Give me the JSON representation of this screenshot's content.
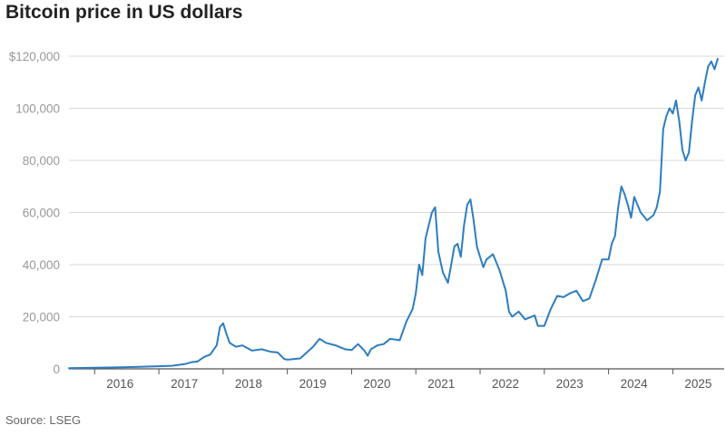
{
  "title": "Bitcoin price in US dollars",
  "source": "Source: LSEG",
  "chart_data": {
    "type": "line",
    "title": "Bitcoin price in US dollars",
    "xlabel": "",
    "ylabel": "",
    "xlim": [
      2015.6,
      2025.8
    ],
    "ylim": [
      0,
      120000
    ],
    "y_ticks": [
      0,
      20000,
      40000,
      60000,
      80000,
      100000,
      120000
    ],
    "y_tick_labels": [
      "0",
      "20,000",
      "40,000",
      "60,000",
      "80,000",
      "100,000",
      "$120,000"
    ],
    "x_ticks": [
      2016,
      2017,
      2018,
      2019,
      2020,
      2021,
      2022,
      2023,
      2024,
      2025
    ],
    "x_tick_labels": [
      "2016",
      "2017",
      "2018",
      "2019",
      "2020",
      "2021",
      "2022",
      "2023",
      "2024",
      "2025"
    ],
    "grid": true,
    "legend": "none",
    "line_color": "#2e7dbf",
    "series": [
      {
        "x": [
          2015.6,
          2016.0,
          2016.5,
          2017.0,
          2017.2,
          2017.4,
          2017.5,
          2017.6,
          2017.7,
          2017.8,
          2017.9,
          2017.95,
          2018.0,
          2018.05,
          2018.1,
          2018.2,
          2018.3,
          2018.45,
          2018.6,
          2018.75,
          2018.85,
          2018.95,
          2019.0,
          2019.2,
          2019.4,
          2019.5,
          2019.6,
          2019.75,
          2019.9,
          2020.0,
          2020.1,
          2020.2,
          2020.25,
          2020.3,
          2020.4,
          2020.5,
          2020.6,
          2020.75,
          2020.85,
          2020.95,
          2021.0,
          2021.05,
          2021.1,
          2021.15,
          2021.2,
          2021.25,
          2021.3,
          2021.35,
          2021.42,
          2021.5,
          2021.55,
          2021.6,
          2021.65,
          2021.7,
          2021.75,
          2021.8,
          2021.85,
          2021.9,
          2021.95,
          2022.0,
          2022.05,
          2022.1,
          2022.2,
          2022.3,
          2022.4,
          2022.45,
          2022.5,
          2022.6,
          2022.7,
          2022.85,
          2022.9,
          2023.0,
          2023.1,
          2023.2,
          2023.3,
          2023.4,
          2023.5,
          2023.6,
          2023.7,
          2023.8,
          2023.9,
          2024.0,
          2024.05,
          2024.1,
          2024.15,
          2024.2,
          2024.25,
          2024.3,
          2024.35,
          2024.4,
          2024.5,
          2024.6,
          2024.7,
          2024.75,
          2024.8,
          2024.85,
          2024.9,
          2024.95,
          2025.0,
          2025.05,
          2025.1,
          2025.15,
          2025.2,
          2025.25,
          2025.3,
          2025.35,
          2025.4,
          2025.45,
          2025.5,
          2025.55,
          2025.6,
          2025.65,
          2025.7
        ],
        "y": [
          250,
          430,
          650,
          1000,
          1200,
          1800,
          2500,
          2800,
          4500,
          5500,
          9000,
          16000,
          17500,
          13500,
          10000,
          8500,
          9000,
          7000,
          7500,
          6500,
          6300,
          3800,
          3500,
          4000,
          8500,
          11500,
          10000,
          9000,
          7500,
          7200,
          9500,
          7000,
          5000,
          7500,
          9000,
          9500,
          11500,
          11000,
          18000,
          23000,
          29000,
          40000,
          36000,
          50000,
          55000,
          60000,
          62000,
          45000,
          37000,
          33000,
          40000,
          47000,
          48000,
          43000,
          55000,
          63000,
          65000,
          57000,
          47000,
          43000,
          39000,
          42000,
          44000,
          38000,
          30000,
          22000,
          20000,
          22000,
          19000,
          20500,
          16500,
          16500,
          23000,
          28000,
          27500,
          29000,
          30000,
          26000,
          27000,
          34000,
          42000,
          42000,
          48000,
          51000,
          62000,
          70000,
          67000,
          63000,
          58000,
          66000,
          60000,
          57000,
          59000,
          62000,
          68000,
          92000,
          97000,
          100000,
          98000,
          103000,
          95000,
          84000,
          80000,
          83000,
          95000,
          105000,
          108000,
          103000,
          110000,
          116000,
          118000,
          115000,
          119000
        ]
      }
    ]
  }
}
